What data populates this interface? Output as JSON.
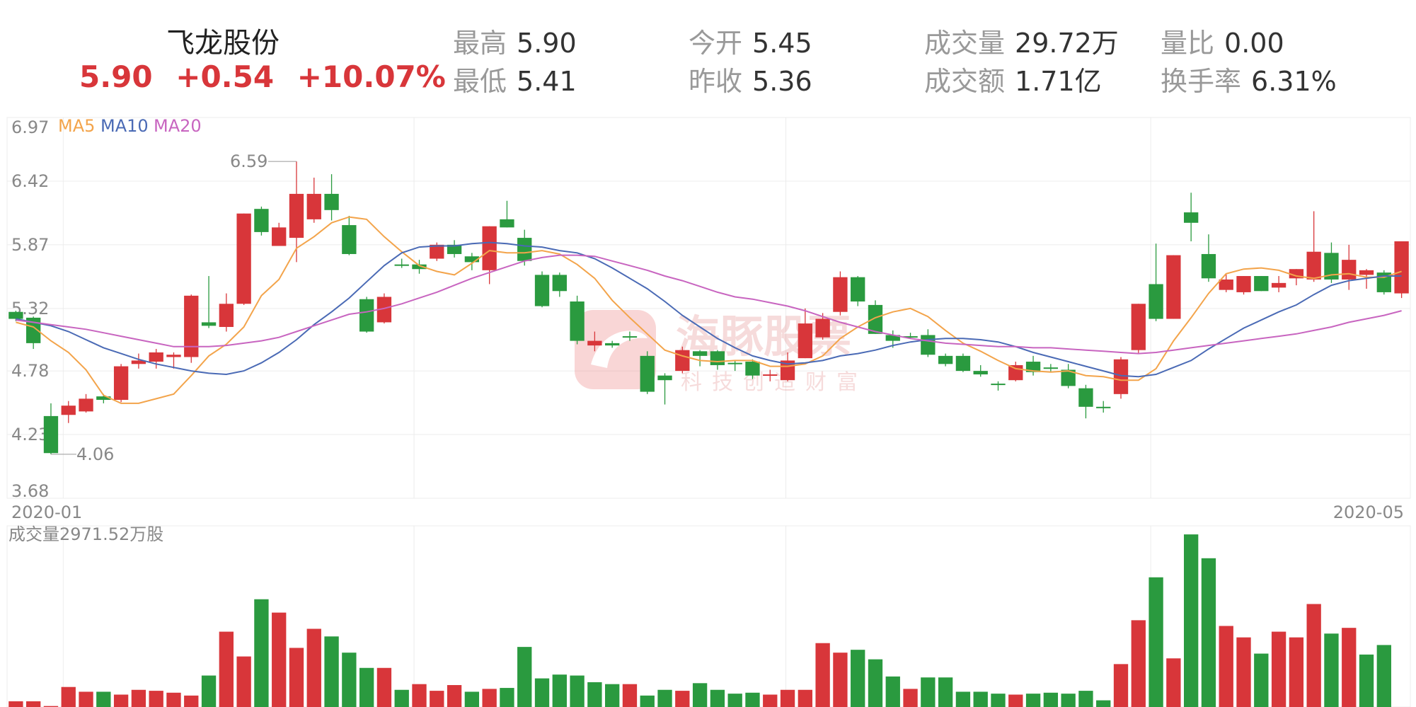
{
  "header": {
    "name": "飞龙股份",
    "price": "5.90",
    "change": "+0.54",
    "change_pct": "+10.07%",
    "stats": [
      {
        "label": "最高",
        "value": "5.90"
      },
      {
        "label": "最低",
        "value": "5.41"
      },
      {
        "label": "今开",
        "value": "5.45"
      },
      {
        "label": "昨收",
        "value": "5.36"
      },
      {
        "label": "成交量",
        "value": "29.72万"
      },
      {
        "label": "成交额",
        "value": "1.71亿"
      },
      {
        "label": "量比",
        "value": "0.00"
      },
      {
        "label": "换手率",
        "value": "6.31%"
      }
    ]
  },
  "watermark": {
    "brand": "海豚股票",
    "slogan": "科技创造财富"
  },
  "colors": {
    "up": "#d8363a",
    "down": "#2a9a3f",
    "ma5": "#f3a44b",
    "ma10": "#4a6ab5",
    "ma20": "#c865c0",
    "grid": "#ececec"
  },
  "chart_data": {
    "type": "candlestick",
    "y_ticks": [
      "6.97",
      "6.42",
      "5.87",
      "5.32",
      "4.78",
      "4.23",
      "3.68"
    ],
    "ylim": [
      3.68,
      6.97
    ],
    "x_labels": [
      "2020-01",
      "2020-05"
    ],
    "legend": [
      "MA5",
      "MA10",
      "MA20"
    ],
    "annotations": {
      "high": "6.59",
      "low": "4.06"
    },
    "volume_label": "成交量2971.52万股",
    "candles": [
      [
        5.29,
        5.23,
        5.3,
        5.21
      ],
      [
        5.24,
        5.02,
        5.25,
        4.97
      ],
      [
        4.39,
        4.07,
        4.5,
        4.06
      ],
      [
        4.4,
        4.48,
        4.52,
        4.33
      ],
      [
        4.43,
        4.54,
        4.58,
        4.42
      ],
      [
        4.56,
        4.53,
        4.58,
        4.5
      ],
      [
        4.53,
        4.82,
        4.84,
        4.51
      ],
      [
        4.84,
        4.87,
        4.93,
        4.8
      ],
      [
        4.86,
        4.94,
        4.97,
        4.8
      ],
      [
        4.9,
        4.92,
        4.94,
        4.8
      ],
      [
        4.9,
        5.43,
        5.44,
        4.85
      ],
      [
        5.2,
        5.17,
        5.6,
        5.15
      ],
      [
        5.16,
        5.36,
        5.45,
        5.12
      ],
      [
        5.36,
        6.14,
        6.14,
        5.35
      ],
      [
        6.18,
        5.98,
        6.2,
        5.95
      ],
      [
        5.86,
        6.02,
        6.06,
        5.86
      ],
      [
        5.93,
        6.31,
        6.59,
        5.72
      ],
      [
        6.09,
        6.31,
        6.45,
        6.06
      ],
      [
        6.31,
        6.17,
        6.48,
        6.08
      ],
      [
        6.04,
        5.79,
        6.12,
        5.78
      ],
      [
        5.4,
        5.12,
        5.42,
        5.11
      ],
      [
        5.2,
        5.42,
        5.45,
        5.19
      ],
      [
        5.7,
        5.69,
        5.75,
        5.67
      ],
      [
        5.7,
        5.66,
        5.74,
        5.62
      ],
      [
        5.75,
        5.87,
        5.89,
        5.73
      ],
      [
        5.87,
        5.79,
        5.91,
        5.76
      ],
      [
        5.77,
        5.72,
        5.8,
        5.65
      ],
      [
        5.65,
        6.03,
        6.03,
        5.53
      ],
      [
        6.09,
        6.02,
        6.25,
        6.02
      ],
      [
        5.93,
        5.73,
        6.0,
        5.69
      ],
      [
        5.61,
        5.34,
        5.64,
        5.33
      ],
      [
        5.61,
        5.47,
        5.63,
        5.42
      ],
      [
        5.38,
        5.04,
        5.43,
        5.01
      ],
      [
        5.0,
        5.04,
        5.12,
        4.95
      ],
      [
        5.02,
        5.0,
        5.04,
        4.98
      ],
      [
        5.08,
        5.07,
        5.12,
        5.04
      ],
      [
        4.91,
        4.6,
        4.95,
        4.58
      ],
      [
        4.74,
        4.7,
        4.76,
        4.49
      ],
      [
        4.78,
        4.96,
        4.99,
        4.76
      ],
      [
        4.95,
        4.91,
        4.96,
        4.82
      ],
      [
        4.95,
        4.83,
        4.96,
        4.79
      ],
      [
        4.85,
        4.84,
        4.87,
        4.78
      ],
      [
        4.86,
        4.74,
        4.88,
        4.71
      ],
      [
        4.74,
        4.75,
        4.79,
        4.69
      ],
      [
        4.7,
        4.87,
        4.94,
        4.69
      ],
      [
        4.89,
        5.19,
        5.32,
        4.89
      ],
      [
        5.07,
        5.23,
        5.28,
        5.05
      ],
      [
        5.29,
        5.59,
        5.64,
        5.26
      ],
      [
        5.59,
        5.38,
        5.6,
        5.34
      ],
      [
        5.35,
        5.1,
        5.39,
        5.1
      ],
      [
        5.09,
        5.04,
        5.13,
        4.98
      ],
      [
        5.08,
        5.07,
        5.11,
        5.06
      ],
      [
        5.09,
        4.92,
        5.14,
        4.9
      ],
      [
        4.91,
        4.84,
        4.93,
        4.82
      ],
      [
        4.91,
        4.78,
        4.93,
        4.77
      ],
      [
        4.78,
        4.75,
        4.83,
        4.73
      ],
      [
        4.67,
        4.66,
        4.69,
        4.61
      ],
      [
        4.7,
        4.83,
        4.86,
        4.69
      ],
      [
        4.86,
        4.77,
        4.91,
        4.74
      ],
      [
        4.81,
        4.8,
        4.84,
        4.77
      ],
      [
        4.79,
        4.65,
        4.84,
        4.63
      ],
      [
        4.63,
        4.47,
        4.66,
        4.37
      ],
      [
        4.47,
        4.46,
        4.52,
        4.42
      ],
      [
        4.58,
        4.88,
        4.9,
        4.54
      ],
      [
        4.96,
        5.36,
        5.36,
        4.93
      ],
      [
        5.53,
        5.23,
        5.88,
        5.21
      ],
      [
        5.23,
        5.78,
        5.78,
        5.23
      ],
      [
        6.15,
        6.06,
        6.32,
        5.9
      ],
      [
        5.79,
        5.58,
        5.96,
        5.55
      ],
      [
        5.48,
        5.57,
        5.62,
        5.46
      ],
      [
        5.46,
        5.6,
        5.6,
        5.44
      ],
      [
        5.6,
        5.47,
        5.6,
        5.47
      ],
      [
        5.5,
        5.54,
        5.6,
        5.46
      ],
      [
        5.58,
        5.66,
        5.66,
        5.52
      ],
      [
        5.57,
        5.81,
        6.16,
        5.55
      ],
      [
        5.8,
        5.57,
        5.89,
        5.54
      ],
      [
        5.57,
        5.74,
        5.87,
        5.48
      ],
      [
        5.61,
        5.65,
        5.66,
        5.49
      ],
      [
        5.63,
        5.46,
        5.65,
        5.44
      ],
      [
        5.45,
        5.9,
        5.9,
        5.41
      ]
    ],
    "series": [
      {
        "name": "MA5",
        "values": [
          5.2,
          5.16,
          5.04,
          4.94,
          4.79,
          4.57,
          4.5,
          4.5,
          4.54,
          4.58,
          4.74,
          4.91,
          5.01,
          5.16,
          5.43,
          5.57,
          5.84,
          5.94,
          6.06,
          6.11,
          6.09,
          5.94,
          5.81,
          5.69,
          5.64,
          5.61,
          5.71,
          5.82,
          5.8,
          5.8,
          5.82,
          5.79,
          5.7,
          5.58,
          5.39,
          5.24,
          5.1,
          4.96,
          4.91,
          4.87,
          4.86,
          4.87,
          4.87,
          4.82,
          4.82,
          4.84,
          4.91,
          5.06,
          5.16,
          5.24,
          5.29,
          5.32,
          5.25,
          5.13,
          5.02,
          4.95,
          4.87,
          4.8,
          4.78,
          4.77,
          4.78,
          4.74,
          4.73,
          4.7,
          4.7,
          4.8,
          5.04,
          5.24,
          5.45,
          5.62,
          5.66,
          5.67,
          5.65,
          5.6,
          5.58,
          5.61,
          5.62,
          5.59,
          5.59,
          5.64
        ]
      },
      {
        "name": "MA10",
        "values": [
          5.23,
          5.2,
          5.17,
          5.12,
          5.05,
          4.98,
          4.93,
          4.88,
          4.84,
          4.81,
          4.78,
          4.76,
          4.75,
          4.78,
          4.85,
          4.94,
          5.05,
          5.18,
          5.29,
          5.41,
          5.55,
          5.69,
          5.8,
          5.85,
          5.86,
          5.86,
          5.88,
          5.89,
          5.88,
          5.86,
          5.85,
          5.82,
          5.8,
          5.75,
          5.67,
          5.58,
          5.49,
          5.38,
          5.26,
          5.16,
          5.06,
          4.98,
          4.91,
          4.87,
          4.84,
          4.85,
          4.87,
          4.91,
          4.93,
          4.96,
          5.0,
          5.03,
          5.05,
          5.06,
          5.06,
          5.05,
          5.03,
          4.99,
          4.94,
          4.9,
          4.86,
          4.82,
          4.78,
          4.74,
          4.73,
          4.75,
          4.81,
          4.87,
          4.97,
          5.06,
          5.15,
          5.22,
          5.29,
          5.35,
          5.44,
          5.52,
          5.56,
          5.58,
          5.6,
          5.6
        ]
      },
      {
        "name": "MA20",
        "values": [
          5.22,
          5.2,
          5.18,
          5.16,
          5.14,
          5.11,
          5.08,
          5.05,
          5.02,
          4.99,
          4.99,
          4.99,
          5.0,
          5.02,
          5.04,
          5.07,
          5.12,
          5.17,
          5.22,
          5.27,
          5.29,
          5.32,
          5.36,
          5.41,
          5.46,
          5.52,
          5.58,
          5.63,
          5.68,
          5.73,
          5.76,
          5.78,
          5.78,
          5.77,
          5.73,
          5.69,
          5.65,
          5.6,
          5.56,
          5.51,
          5.46,
          5.42,
          5.4,
          5.37,
          5.34,
          5.3,
          5.25,
          5.2,
          5.16,
          5.12,
          5.09,
          5.06,
          5.04,
          5.02,
          5.01,
          5.0,
          4.99,
          4.99,
          4.98,
          4.98,
          4.97,
          4.96,
          4.95,
          4.94,
          4.93,
          4.94,
          4.96,
          4.98,
          5.0,
          5.02,
          5.04,
          5.06,
          5.08,
          5.1,
          5.13,
          5.16,
          5.2,
          5.23,
          5.26,
          5.3
        ]
      }
    ],
    "volume": [
      6,
      6,
      1,
      21,
      16,
      16,
      13,
      18,
      17,
      15,
      12,
      33,
      79,
      53,
      113,
      99,
      62,
      82,
      74,
      57,
      41,
      41,
      18,
      24,
      17,
      23,
      16,
      19,
      20,
      63,
      30,
      34,
      33,
      26,
      24,
      24,
      12,
      18,
      17,
      25,
      18,
      14,
      15,
      13,
      18,
      18,
      67,
      57,
      60,
      50,
      32,
      19,
      31,
      31,
      16,
      16,
      14,
      13,
      14,
      15,
      14,
      17,
      7,
      45,
      91,
      136,
      51,
      181,
      156,
      85,
      73,
      56,
      79,
      73,
      108,
      77,
      83,
      55,
      65,
      0
    ],
    "volume_up": [
      true,
      true,
      true,
      true,
      true,
      false,
      true,
      true,
      true,
      true,
      true,
      false,
      true,
      true,
      false,
      true,
      true,
      true,
      false,
      false,
      false,
      true,
      false,
      true,
      true,
      true,
      false,
      true,
      false,
      false,
      false,
      false,
      false,
      false,
      false,
      true,
      false,
      false,
      true,
      false,
      false,
      false,
      false,
      true,
      true,
      true,
      true,
      true,
      false,
      false,
      false,
      true,
      false,
      false,
      false,
      false,
      false,
      true,
      false,
      false,
      false,
      false,
      false,
      true,
      true,
      false,
      true,
      false,
      false,
      true,
      true,
      false,
      true,
      true,
      true,
      false,
      true,
      false,
      false,
      true
    ]
  }
}
